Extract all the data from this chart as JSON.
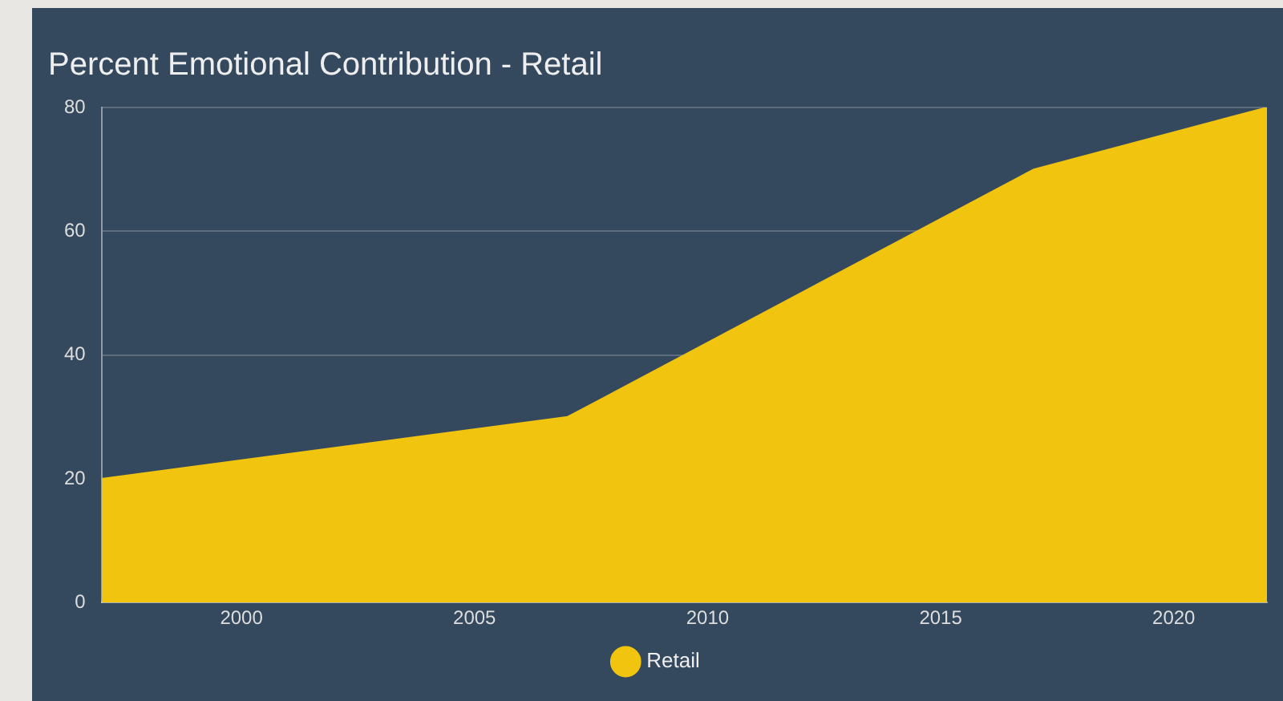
{
  "chart_data": {
    "type": "area",
    "title": "Percent Emotional Contribution - Retail",
    "x": [
      1997,
      2007,
      2017,
      2022
    ],
    "series": [
      {
        "name": "Retail",
        "color": "#f1c40f",
        "values": [
          20,
          30,
          70,
          80
        ]
      }
    ],
    "xlim": [
      1997,
      2022
    ],
    "xticks": [
      2000,
      2005,
      2010,
      2015,
      2020
    ],
    "ylim": [
      0,
      80
    ],
    "yticks": [
      0,
      20,
      40,
      60,
      80
    ],
    "grid": "y",
    "legend": "bottom"
  }
}
